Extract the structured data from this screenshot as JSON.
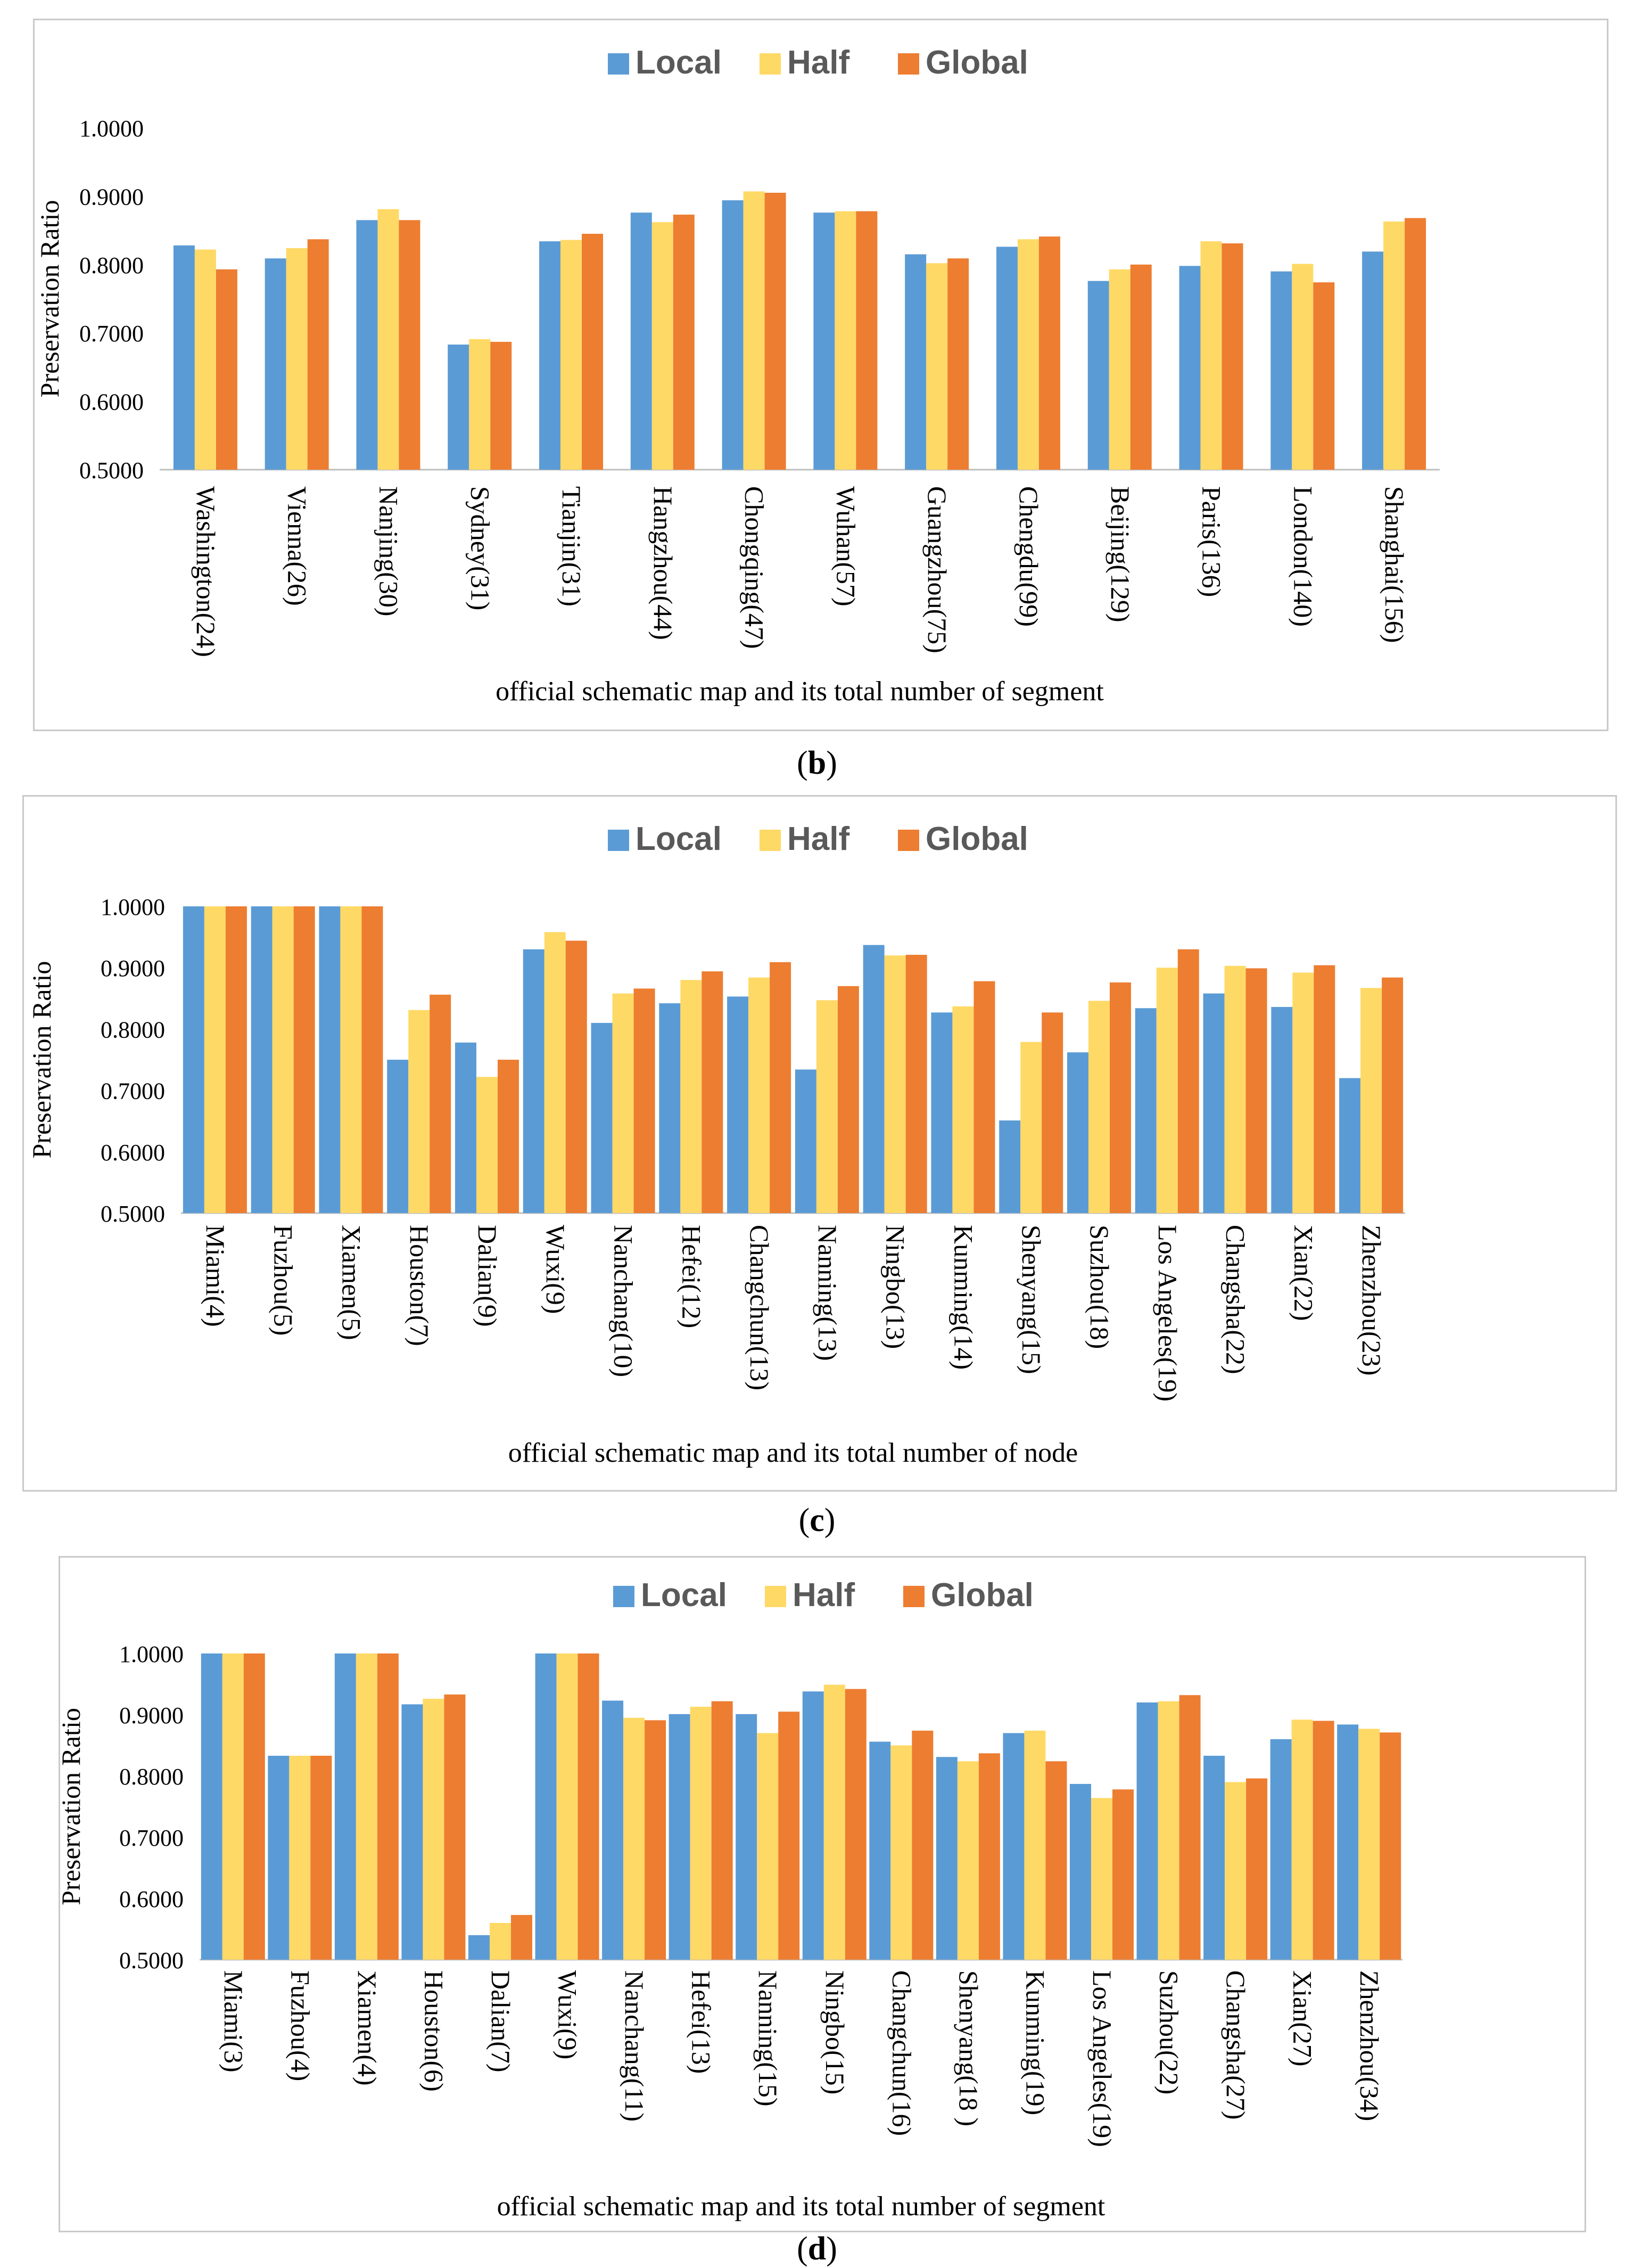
{
  "chart_data": [
    {
      "panel": "b",
      "type": "bar",
      "legend": [
        "Local",
        "Half",
        "Global"
      ],
      "ylabel": "Preservation Ratio",
      "xlabel": "official schematic map and its total number of segment",
      "ylim": [
        0.5,
        1.0
      ],
      "yticks": [
        "0.5000",
        "0.6000",
        "0.7000",
        "0.8000",
        "0.9000",
        "1.0000"
      ],
      "categories": [
        "Washington(24)",
        "Vienna(26)",
        "Nanjing(30)",
        "Sydney(31)",
        "Tianjin(31)",
        "Hangzhou(44)",
        "Chongqing(47)",
        "Wuhan(57)",
        "Guangzhou(75)",
        "Chengdu(99)",
        "Beijing(129)",
        "Paris(136)",
        "London(140)",
        "Shanghai(156)"
      ],
      "series": [
        {
          "name": "Local",
          "values": [
            0.828,
            0.809,
            0.865,
            0.683,
            0.834,
            0.876,
            0.894,
            0.876,
            0.815,
            0.826,
            0.776,
            0.798,
            0.79,
            0.819
          ]
        },
        {
          "name": "Half",
          "values": [
            0.822,
            0.824,
            0.881,
            0.691,
            0.836,
            0.862,
            0.907,
            0.878,
            0.802,
            0.837,
            0.793,
            0.834,
            0.801,
            0.863
          ]
        },
        {
          "name": "Global",
          "values": [
            0.793,
            0.837,
            0.865,
            0.687,
            0.845,
            0.873,
            0.905,
            0.878,
            0.809,
            0.841,
            0.8,
            0.831,
            0.774,
            0.868
          ]
        }
      ]
    },
    {
      "panel": "c",
      "type": "bar",
      "legend": [
        "Local",
        "Half",
        "Global"
      ],
      "ylabel": "Preservation Ratio",
      "xlabel": "official schematic map and its total number of node",
      "ylim": [
        0.5,
        1.0
      ],
      "yticks": [
        "0.5000",
        "0.6000",
        "0.7000",
        "0.8000",
        "0.9000",
        "1.0000"
      ],
      "categories": [
        "Miami(4)",
        "Fuzhou(5)",
        "Xiamen(5)",
        "Houston(7)",
        "Dalian(9)",
        "Wuxi(9)",
        "Nanchang(10)",
        "Hefei(12)",
        "Changchun(13)",
        "Nanning(13)",
        "Ningbo(13)",
        "Kunming(14)",
        "Shenyang(15)",
        "Suzhou(18)",
        "Los Angeles(19)",
        "Changsha(22)",
        "Xian(22)",
        "Zhenzhou(23)"
      ],
      "series": [
        {
          "name": "Local",
          "values": [
            1.0,
            1.0,
            1.0,
            0.75,
            0.778,
            0.93,
            0.81,
            0.842,
            0.853,
            0.734,
            0.937,
            0.827,
            0.651,
            0.762,
            0.834,
            0.858,
            0.836,
            0.72
          ]
        },
        {
          "name": "Half",
          "values": [
            1.0,
            1.0,
            1.0,
            0.831,
            0.722,
            0.958,
            0.858,
            0.88,
            0.884,
            0.847,
            0.92,
            0.837,
            0.779,
            0.846,
            0.9,
            0.903,
            0.892,
            0.867
          ]
        },
        {
          "name": "Global",
          "values": [
            1.0,
            1.0,
            1.0,
            0.856,
            0.75,
            0.944,
            0.866,
            0.894,
            0.909,
            0.87,
            0.921,
            0.878,
            0.827,
            0.876,
            0.93,
            0.899,
            0.904,
            0.884
          ]
        }
      ]
    },
    {
      "panel": "d",
      "type": "bar",
      "legend": [
        "Local",
        "Half",
        "Global"
      ],
      "ylabel": "Preservation Ratio",
      "xlabel": "official schematic map and its total number of segment",
      "ylim": [
        0.5,
        1.0
      ],
      "yticks": [
        "0.5000",
        "0.6000",
        "0.7000",
        "0.8000",
        "0.9000",
        "1.0000"
      ],
      "categories": [
        "Miami(3)",
        "Fuzhou(4)",
        "Xiamen(4)",
        "Houston(6)",
        "Dalian(7)",
        "Wuxi(9)",
        "Nanchang(11)",
        "Hefei(13)",
        "Nanning(15)",
        "Ningbo(15)",
        "Changchun(16)",
        "Shenyang(18 )",
        "Kunming(19)",
        "Los Angeles(19)",
        "Suzhou(22)",
        "Changsha(27)",
        "Xian(27)",
        "Zhenzhou(34)"
      ],
      "series": [
        {
          "name": "Local",
          "values": [
            1.0,
            0.833,
            1.0,
            0.917,
            0.54,
            1.0,
            0.923,
            0.901,
            0.901,
            0.938,
            0.856,
            0.831,
            0.87,
            0.787,
            0.92,
            0.833,
            0.86,
            0.884
          ]
        },
        {
          "name": "Half",
          "values": [
            1.0,
            0.833,
            1.0,
            0.926,
            0.56,
            1.0,
            0.895,
            0.913,
            0.87,
            0.949,
            0.85,
            0.824,
            0.874,
            0.764,
            0.922,
            0.79,
            0.892,
            0.877
          ]
        },
        {
          "name": "Global",
          "values": [
            1.0,
            0.833,
            1.0,
            0.933,
            0.573,
            1.0,
            0.891,
            0.922,
            0.905,
            0.942,
            0.874,
            0.837,
            0.824,
            0.778,
            0.932,
            0.796,
            0.89,
            0.871
          ]
        }
      ]
    }
  ],
  "colors": {
    "Local": "#5b9bd5",
    "Half": "#ffd966",
    "Global": "#ed7d31"
  },
  "labels": {
    "b": "b",
    "c": "c",
    "d": "d"
  }
}
